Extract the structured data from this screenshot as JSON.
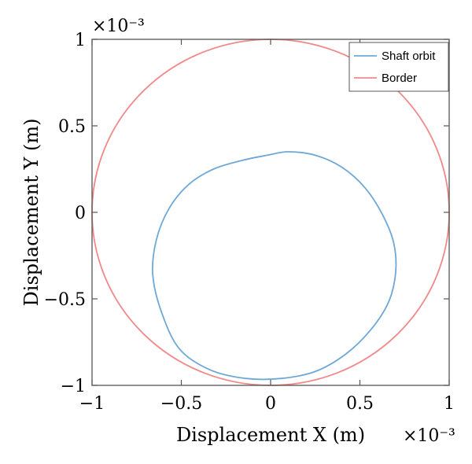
{
  "chart_data": {
    "type": "line",
    "xlabel": "Displacement X (m)",
    "ylabel": "Displacement Y (m)",
    "x_exponent_label": "×10⁻³",
    "y_exponent_label": "×10⁻³",
    "xlim": [
      -1,
      1
    ],
    "ylim": [
      -1,
      1
    ],
    "x_ticks": [
      -1,
      -0.5,
      0,
      0.5,
      1
    ],
    "y_ticks": [
      -1,
      -0.5,
      0,
      0.5,
      1
    ],
    "x_tick_labels": [
      "−1",
      "−0.5",
      "0",
      "0.5",
      "1"
    ],
    "y_tick_labels": [
      "−1",
      "−0.5",
      "0",
      "0.5",
      "1"
    ],
    "grid": false,
    "legend_position": "top-right",
    "series": [
      {
        "name": "Shaft orbit",
        "color": "#6fa8d6",
        "x": [
          0.1,
          0.25,
          0.4,
          0.53,
          0.63,
          0.69,
          0.7,
          0.66,
          0.56,
          0.42,
          0.25,
          0.06,
          -0.14,
          -0.34,
          -0.51,
          -0.61,
          -0.66,
          -0.64,
          -0.57,
          -0.46,
          -0.32,
          -0.16,
          -0.02,
          0.1
        ],
        "y": [
          0.35,
          0.33,
          0.26,
          0.14,
          -0.02,
          -0.18,
          -0.35,
          -0.52,
          -0.68,
          -0.82,
          -0.92,
          -0.96,
          -0.96,
          -0.91,
          -0.79,
          -0.58,
          -0.36,
          -0.16,
          0.02,
          0.16,
          0.25,
          0.3,
          0.33,
          0.35
        ]
      },
      {
        "name": "Border",
        "color": "#f08a8a",
        "shape": "circle",
        "center": [
          0,
          0
        ],
        "radius": 1
      }
    ]
  }
}
